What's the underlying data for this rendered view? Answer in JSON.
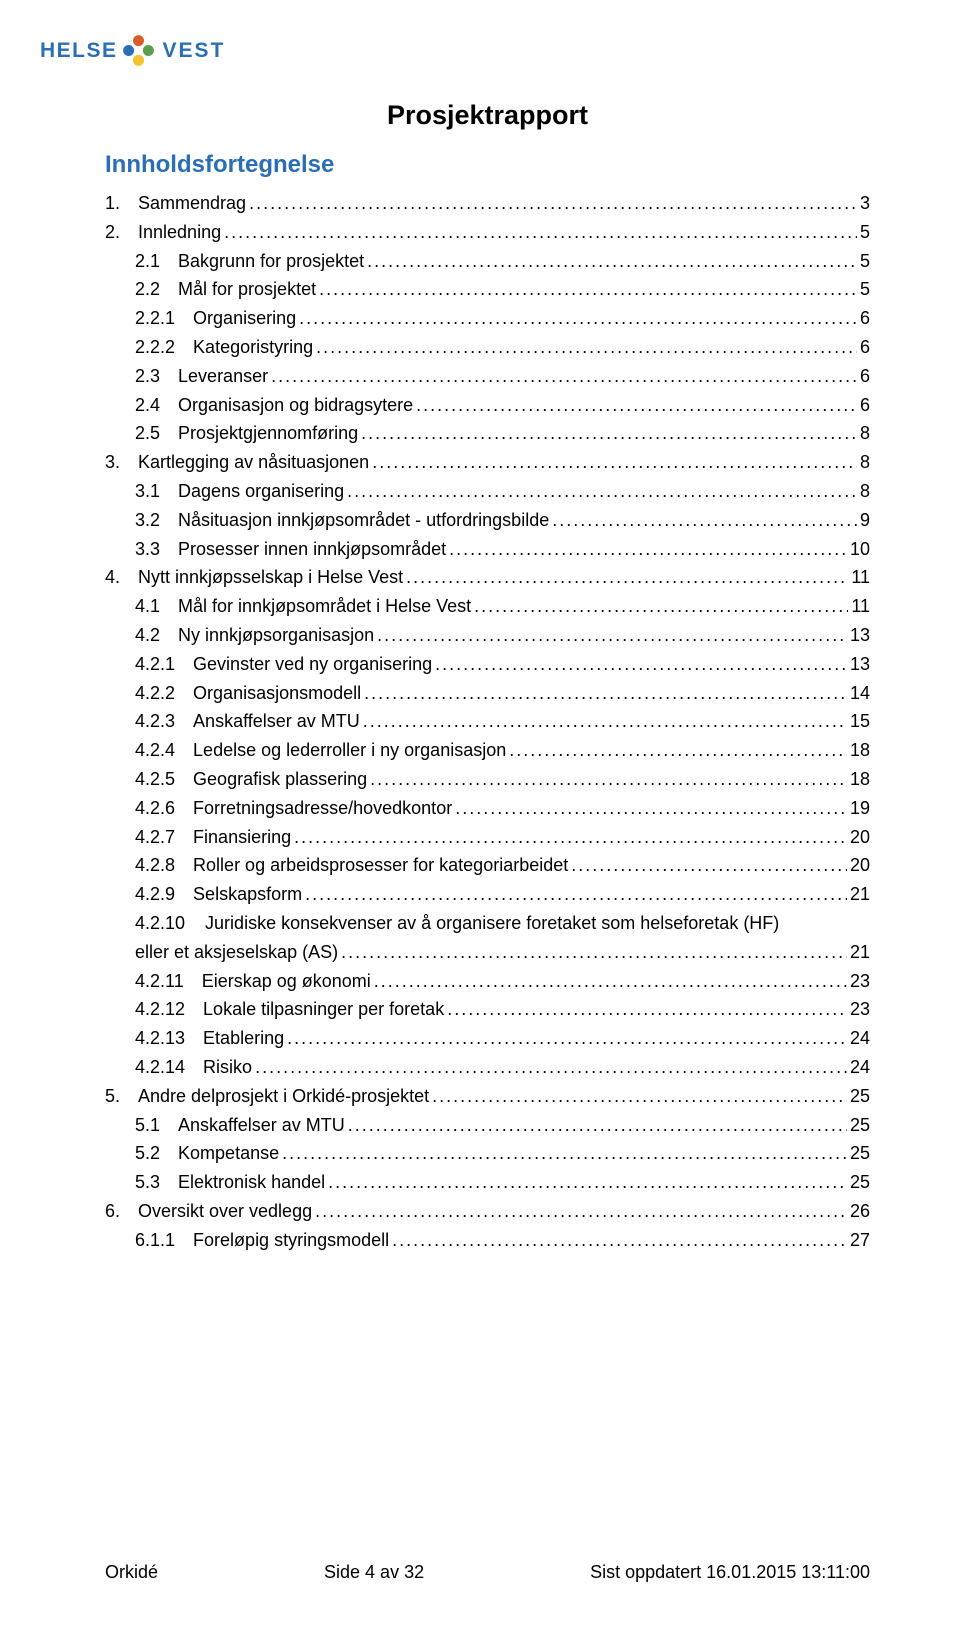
{
  "logo": {
    "text_left": "HELSE",
    "text_right": "VEST",
    "brand_color": "#2a6fb5",
    "dot_colors": [
      "#d85f2a",
      "#5a9e4f",
      "#2a6fb5",
      "#f4c430"
    ]
  },
  "doc_title": "Prosjektrapport",
  "toc_heading": "Innholdsfortegnelse",
  "toc": [
    {
      "num": "1.",
      "label": "Sammendrag",
      "page": "3",
      "indent": 0
    },
    {
      "num": "2.",
      "label": "Innledning",
      "page": "5",
      "indent": 0
    },
    {
      "num": "2.1",
      "label": "Bakgrunn for prosjektet",
      "page": "5",
      "indent": 1
    },
    {
      "num": "2.2",
      "label": "Mål for prosjektet",
      "page": "5",
      "indent": 1
    },
    {
      "num": "2.2.1",
      "label": "Organisering",
      "page": "6",
      "indent": 2
    },
    {
      "num": "2.2.2",
      "label": "Kategoristyring",
      "page": "6",
      "indent": 2
    },
    {
      "num": "2.3",
      "label": "Leveranser",
      "page": "6",
      "indent": 1
    },
    {
      "num": "2.4",
      "label": "Organisasjon og bidragsytere",
      "page": "6",
      "indent": 1
    },
    {
      "num": "2.5",
      "label": "Prosjektgjennomføring",
      "page": "8",
      "indent": 1
    },
    {
      "num": "3.",
      "label": "Kartlegging av nåsituasjonen",
      "page": "8",
      "indent": 0
    },
    {
      "num": "3.1",
      "label": "Dagens organisering",
      "page": "8",
      "indent": 1
    },
    {
      "num": "3.2",
      "label": "Nåsituasjon innkjøpsområdet - utfordringsbilde",
      "page": "9",
      "indent": 1
    },
    {
      "num": "3.3",
      "label": "Prosesser innen innkjøpsområdet",
      "page": "10",
      "indent": 1
    },
    {
      "num": "4.",
      "label": "Nytt innkjøpsselskap i Helse Vest",
      "page": "11",
      "indent": 0
    },
    {
      "num": "4.1",
      "label": "Mål for innkjøpsområdet i Helse Vest",
      "page": "11",
      "indent": 1
    },
    {
      "num": "4.2",
      "label": "Ny innkjøpsorganisasjon",
      "page": "13",
      "indent": 1
    },
    {
      "num": "4.2.1",
      "label": "Gevinster ved ny organisering",
      "page": "13",
      "indent": 2
    },
    {
      "num": "4.2.2",
      "label": "Organisasjonsmodell",
      "page": "14",
      "indent": 2
    },
    {
      "num": "4.2.3",
      "label": "Anskaffelser av MTU",
      "page": "15",
      "indent": 2
    },
    {
      "num": "4.2.4",
      "label": "Ledelse og lederroller i ny organisasjon",
      "page": "18",
      "indent": 2
    },
    {
      "num": "4.2.5",
      "label": "Geografisk plassering",
      "page": "18",
      "indent": 2
    },
    {
      "num": "4.2.6",
      "label": "Forretningsadresse/hovedkontor",
      "page": "19",
      "indent": 2
    },
    {
      "num": "4.2.7",
      "label": "Finansiering",
      "page": "20",
      "indent": 2
    },
    {
      "num": "4.2.8",
      "label": "Roller og arbeidsprosesser for kategoriarbeidet",
      "page": "20",
      "indent": 2
    },
    {
      "num": "4.2.9",
      "label": "Selskapsform",
      "page": "21",
      "indent": 2
    },
    {
      "num": "4.2.10",
      "label": "Juridiske konsekvenser av å organisere foretaket som helseforetak (HF) eller et aksjeselskap (AS)",
      "page": "21",
      "indent": 2,
      "wrap": true
    },
    {
      "num": "4.2.11",
      "label": "Eierskap og økonomi",
      "page": "23",
      "indent": 2
    },
    {
      "num": "4.2.12",
      "label": "Lokale tilpasninger per foretak",
      "page": "23",
      "indent": 2
    },
    {
      "num": "4.2.13",
      "label": "Etablering",
      "page": "24",
      "indent": 2
    },
    {
      "num": "4.2.14",
      "label": "Risiko",
      "page": "24",
      "indent": 2
    },
    {
      "num": "5.",
      "label": "Andre delprosjekt i Orkidé-prosjektet",
      "page": "25",
      "indent": 0
    },
    {
      "num": "5.1",
      "label": "Anskaffelser av MTU",
      "page": "25",
      "indent": 1
    },
    {
      "num": "5.2",
      "label": "Kompetanse",
      "page": "25",
      "indent": 1
    },
    {
      "num": "5.3",
      "label": "Elektronisk handel",
      "page": "25",
      "indent": 1
    },
    {
      "num": "6.",
      "label": "Oversikt over vedlegg",
      "page": "26",
      "indent": 0
    },
    {
      "num": "6.1.1",
      "label": "Foreløpig styringsmodell",
      "page": "27",
      "indent": 2
    }
  ],
  "footer": {
    "left": "Orkidé",
    "center": "Side 4 av 32",
    "right": "Sist oppdatert 16.01.2015 13:11:00"
  },
  "styling": {
    "page_bg": "#ffffff",
    "text_color": "#000000",
    "heading_color": "#2a6fb5",
    "body_fontsize": 18,
    "title_fontsize": 27,
    "heading_fontsize": 24
  }
}
